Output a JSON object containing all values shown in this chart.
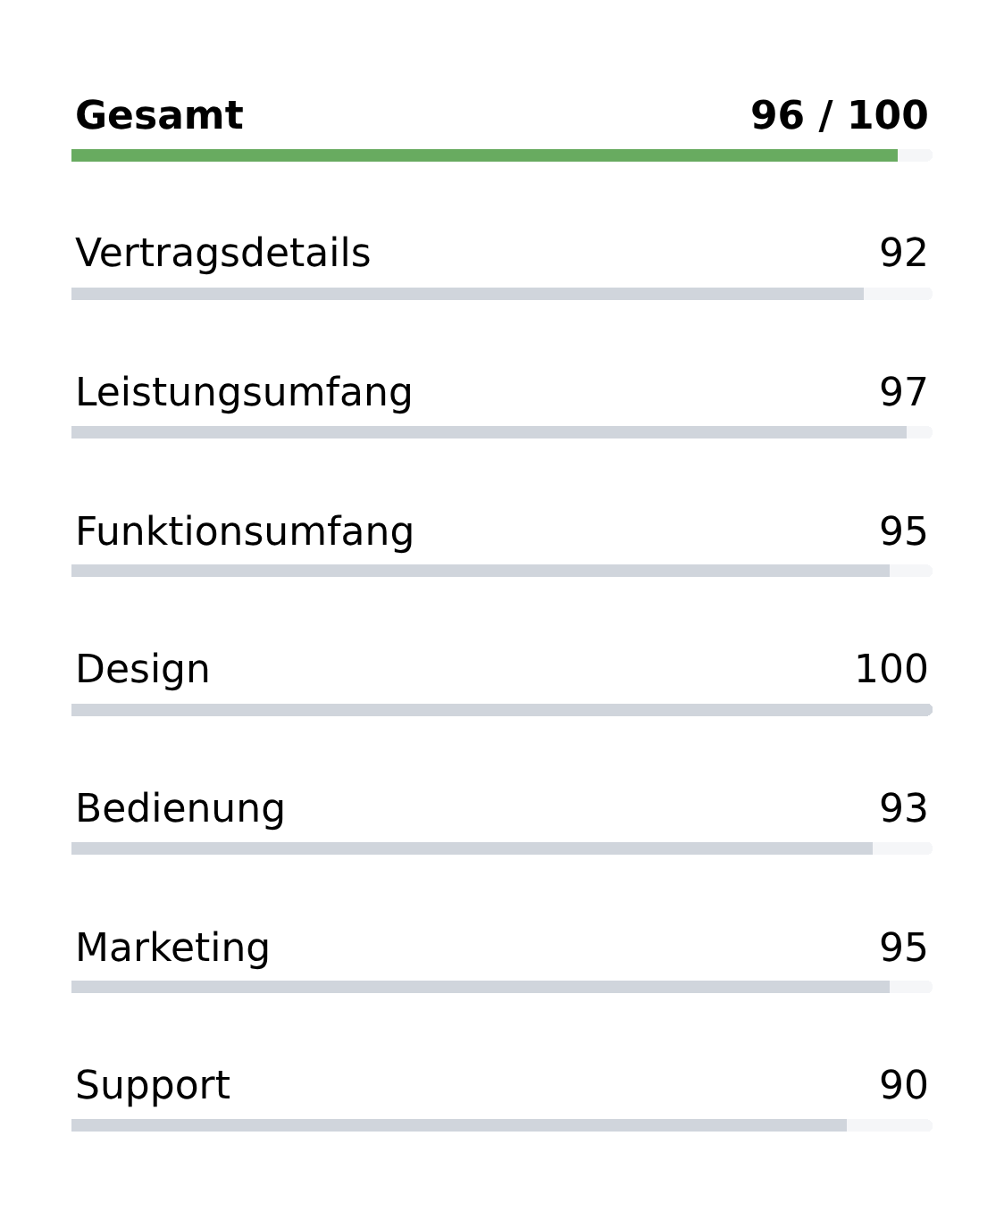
{
  "chart_data": {
    "type": "bar",
    "orientation": "horizontal",
    "stacked": true,
    "tick_labels": "y",
    "xlim": [
      0,
      100
    ],
    "categories": [
      "Gesamt",
      "Vertragsdetails",
      "Leistungsumfang",
      "Funktionsumfang",
      "Design",
      "Bedienung",
      "Marketing",
      "Support"
    ],
    "series": [
      {
        "colors": [
          "#68ab60",
          "#d0d5dc",
          "#d0d5dc",
          "#d0d5dc",
          "#d0d5dc",
          "#d0d5dc",
          "#d0d5dc",
          "#d0d5dc"
        ],
        "values": [
          96,
          92,
          97,
          95,
          100,
          93,
          95,
          90
        ],
        "value_labels": [
          "96 / 100",
          "92",
          "97",
          "95",
          "100",
          "93",
          "95",
          "90"
        ]
      },
      {
        "color": "#f5f6f8",
        "values": [
          4,
          8,
          3,
          5,
          0,
          7,
          5,
          10
        ]
      }
    ]
  }
}
